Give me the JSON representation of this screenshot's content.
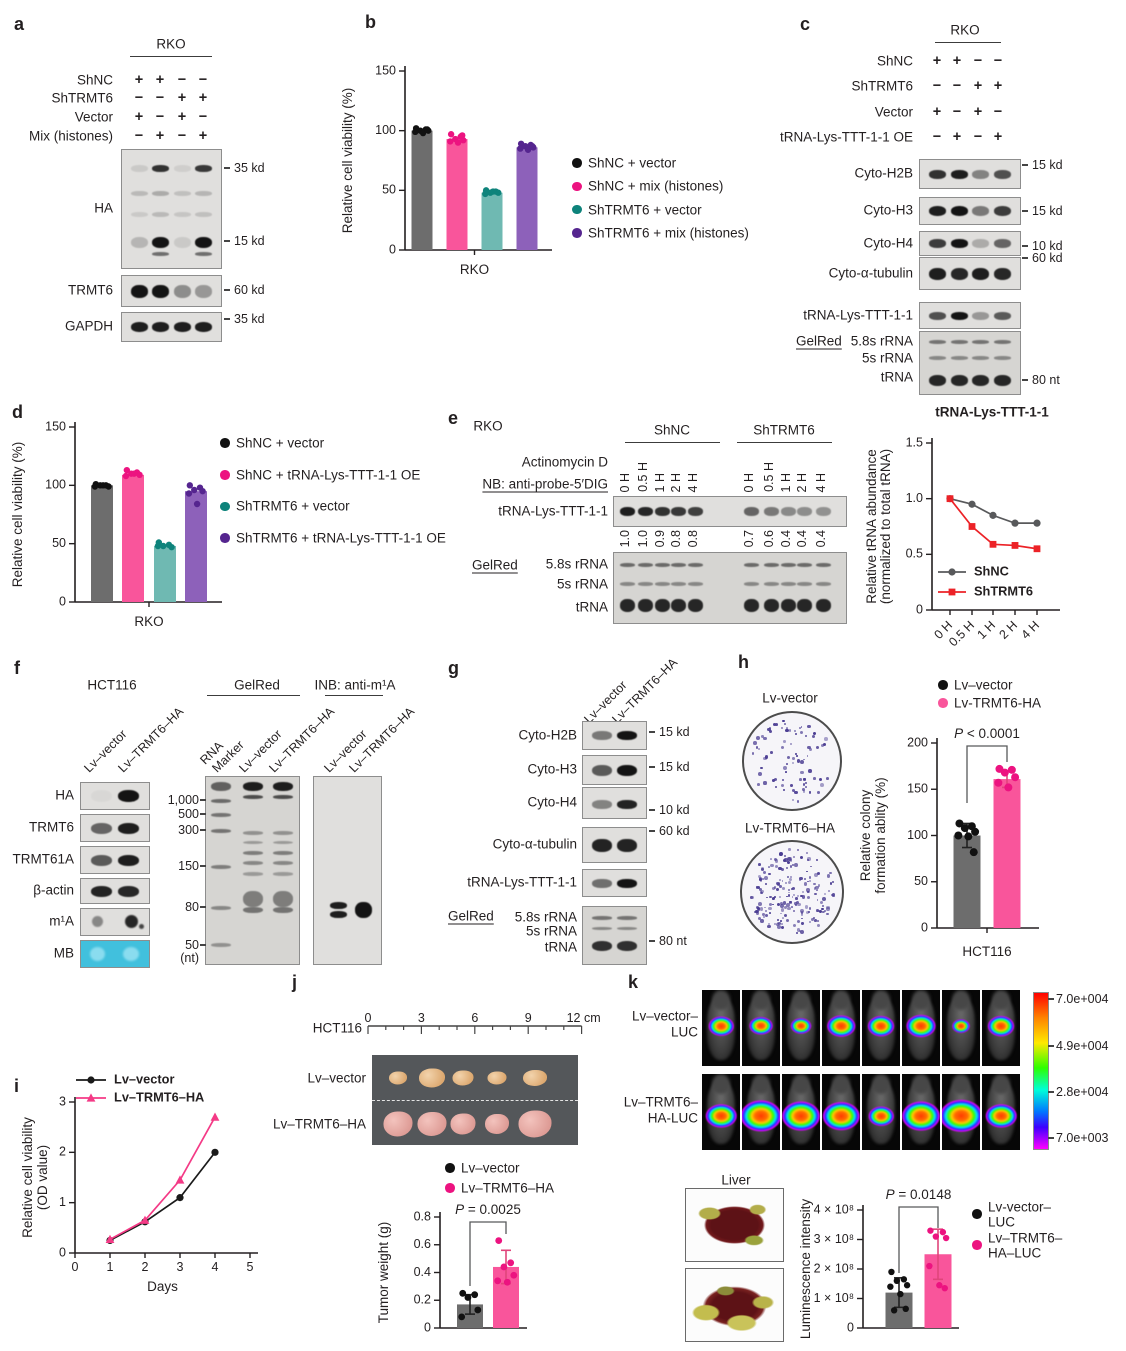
{
  "colors": {
    "bar_gray": "#6d6d6d",
    "bar_pink": "#f9559b",
    "bar_teal": "#6fb9b2",
    "bar_purple": "#8d61ba",
    "dot_black": "#111111",
    "dot_pink": "#ec1380",
    "dot_teal": "#0e837b",
    "dot_purple": "#55258f",
    "line_gray": "#58595b",
    "line_red": "#ec2227",
    "line_black": "#1a1a1a",
    "line_pink": "#f43a86",
    "err_dark": "#222222",
    "err_pink": "#e0457b",
    "mb_cyan": "#41c0dd"
  },
  "panel_a": {
    "label": "a",
    "cell_line": "RKO",
    "conditions": [
      {
        "name": "ShNC",
        "signs": [
          "+",
          "+",
          "−",
          "−"
        ]
      },
      {
        "name": "ShTRMT6",
        "signs": [
          "−",
          "−",
          "+",
          "+"
        ]
      },
      {
        "name": "Vector",
        "signs": [
          "+",
          "−",
          "+",
          "−"
        ]
      },
      {
        "name": "Mix (histones)",
        "signs": [
          "−",
          "+",
          "−",
          "+"
        ]
      }
    ],
    "blots": [
      {
        "label": "HA",
        "markers": [
          {
            "text": "35 kd",
            "f": 0.16
          },
          {
            "text": "15 kd",
            "f": 0.78
          }
        ],
        "bands": [
          {
            "f": 0.16,
            "th": 7,
            "lanes": [
              0.1,
              0.85,
              0.08,
              0.82
            ]
          },
          {
            "f": 0.37,
            "th": 5,
            "lanes": [
              0.18,
              0.25,
              0.15,
              0.2
            ]
          },
          {
            "f": 0.55,
            "th": 5,
            "lanes": [
              0.1,
              0.18,
              0.12,
              0.15
            ]
          },
          {
            "f": 0.78,
            "th": 11,
            "lanes": [
              0.2,
              1.0,
              0.1,
              1.0
            ]
          },
          {
            "f": 0.88,
            "th": 4,
            "lanes": [
              0,
              0.55,
              0,
              0.55
            ]
          }
        ]
      },
      {
        "label": "TRMT6",
        "markers": [
          {
            "text": "60 kd",
            "f": 0.5
          }
        ],
        "bands": [
          {
            "f": 0.5,
            "th": 13,
            "lanes": [
              1.0,
              1.0,
              0.4,
              0.35
            ]
          }
        ]
      },
      {
        "label": "GAPDH",
        "markers": [
          {
            "text": "35 kd",
            "f": 0.25
          }
        ],
        "bands": [
          {
            "f": 0.5,
            "th": 10,
            "lanes": [
              0.95,
              0.95,
              0.95,
              0.95
            ]
          }
        ]
      }
    ]
  },
  "panel_b": {
    "label": "b",
    "chart": {
      "type": "bar",
      "ylabel": "Relative cell viability (%)",
      "xlabel": "RKO",
      "ylim": [
        0,
        150
      ],
      "ytick_labels": [
        "0",
        "50",
        "100",
        "150"
      ],
      "bars": [
        {
          "name": "ShNC + vector",
          "value": 100,
          "points": [
            102,
            101,
            100,
            100,
            99,
            98,
            101
          ]
        },
        {
          "name": "ShNC + mix (histones)",
          "value": 93,
          "points": [
            97,
            95,
            93,
            92,
            91,
            90,
            96
          ]
        },
        {
          "name": "ShTRMT6 + vector",
          "value": 48,
          "points": [
            50,
            49,
            48,
            48,
            47,
            49
          ]
        },
        {
          "name": "ShTRMT6 + mix (histones)",
          "value": 86,
          "points": [
            89,
            88,
            87,
            86,
            85,
            84,
            87
          ]
        }
      ]
    },
    "legend": [
      "ShNC + vector",
      "ShNC + mix (histones)",
      "ShTRMT6 + vector",
      "ShTRMT6 + mix (histones)"
    ]
  },
  "panel_c": {
    "label": "c",
    "cell_line": "RKO",
    "conditions": [
      {
        "name": "ShNC",
        "signs": [
          "+",
          "+",
          "−",
          "−"
        ]
      },
      {
        "name": "ShTRMT6",
        "signs": [
          "−",
          "−",
          "+",
          "+"
        ]
      },
      {
        "name": "Vector",
        "signs": [
          "+",
          "−",
          "+",
          "−"
        ]
      },
      {
        "name": "tRNA-Lys-TTT-1-1 OE",
        "signs": [
          "−",
          "+",
          "−",
          "+"
        ]
      }
    ],
    "blots": [
      {
        "label": "Cyto-H2B",
        "marker": "15 kd",
        "bands": [
          {
            "f": 0.5,
            "th": 9,
            "lanes": [
              0.85,
              0.95,
              0.45,
              0.7
            ]
          }
        ]
      },
      {
        "label": "Cyto-H3",
        "marker": "15 kd",
        "bands": [
          {
            "f": 0.5,
            "th": 10,
            "lanes": [
              0.95,
              1.0,
              0.5,
              0.8
            ]
          }
        ]
      },
      {
        "label": "Cyto-H4",
        "marker": "10 kd",
        "bands": [
          {
            "f": 0.5,
            "th": 9,
            "lanes": [
              0.8,
              1.0,
              0.25,
              0.6
            ]
          }
        ]
      },
      {
        "label": "Cyto-α-tubulin",
        "marker": "60 kd",
        "bands": [
          {
            "f": 0.5,
            "th": 12,
            "lanes": [
              0.95,
              0.9,
              0.95,
              0.9
            ]
          }
        ]
      },
      {
        "label": "tRNA-Lys-TTT-1-1",
        "marker": "",
        "bands": [
          {
            "f": 0.5,
            "th": 8,
            "lanes": [
              0.7,
              1.0,
              0.35,
              0.65
            ]
          }
        ]
      }
    ],
    "gel_label": "GelRed",
    "gel_rows": [
      "5.8s rRNA",
      "5s rRNA",
      "tRNA"
    ],
    "gel_marker": "80 nt"
  },
  "panel_d": {
    "label": "d",
    "chart": {
      "type": "bar",
      "ylabel": "Relative cell viability (%)",
      "xlabel": "RKO",
      "ylim": [
        0,
        150
      ],
      "ytick_labels": [
        "0",
        "50",
        "100",
        "150"
      ],
      "bars": [
        {
          "name": "ShNC + vector",
          "value": 100,
          "points": [
            101,
            100,
            100,
            99,
            99,
            100
          ]
        },
        {
          "name": "ShNC + tRNA-Lys-TTT-1-1 OE",
          "value": 109,
          "points": [
            113,
            111,
            110,
            109,
            108,
            110
          ]
        },
        {
          "name": "ShTRMT6 + vector",
          "value": 48,
          "points": [
            51,
            49,
            48,
            47,
            48
          ]
        },
        {
          "name": "ShTRMT6 + tRNA-Lys-TTT-1-1 OE",
          "value": 95,
          "points": [
            100,
            98,
            96,
            95,
            93,
            84
          ]
        }
      ]
    },
    "legend": [
      "ShNC + vector",
      "ShNC + tRNA-Lys-TTT-1-1 OE",
      "ShTRMT6 + vector",
      "ShTRMT6 + tRNA-Lys-TTT-1-1 OE"
    ]
  },
  "panel_e": {
    "label": "e",
    "cell_line": "RKO",
    "groups": [
      "ShNC",
      "ShTRMT6"
    ],
    "treatment": "Actinomycin D",
    "nb": "NB: anti-probe-5′DIG",
    "times": [
      "0 H",
      "0.5 H",
      "1 H",
      "2 H",
      "4 H"
    ],
    "blot": "tRNA-Lys-TTT-1-1",
    "quant": [
      [
        "1.0",
        "1.0",
        "0.9",
        "0.8",
        "0.8"
      ],
      [
        "0.7",
        "0.6",
        "0.4",
        "0.4",
        "0.4"
      ]
    ],
    "band_int": [
      [
        0.95,
        0.9,
        0.85,
        0.82,
        0.78
      ],
      [
        0.6,
        0.5,
        0.42,
        0.4,
        0.38
      ]
    ],
    "gel_label": "GelRed",
    "gel_rows": [
      "5.8s rRNA",
      "5s rRNA",
      "tRNA"
    ],
    "chart": {
      "type": "line",
      "title": "tRNA-Lys-TTT-1-1",
      "ylabel": [
        "Relative tRNA abundance",
        "(normalized to total tRNA)"
      ],
      "ylim": [
        0,
        1.5
      ],
      "ytick_labels": [
        "0",
        "0.5",
        "1.0",
        "1.5"
      ],
      "xticks": [
        "0 H",
        "0.5 H",
        "1 H",
        "2 H",
        "4 H"
      ],
      "series": [
        {
          "name": "ShNC",
          "marker": "circle",
          "color": "#58595b",
          "values": [
            1.0,
            0.95,
            0.85,
            0.78,
            0.78
          ]
        },
        {
          "name": "ShTRMT6",
          "marker": "square",
          "color": "#ec2227",
          "values": [
            1.0,
            0.75,
            0.59,
            0.58,
            0.55
          ]
        }
      ]
    }
  },
  "panel_f": {
    "label": "f",
    "cell_line": "HCT116",
    "lanes": [
      "Lv–vector",
      "Lv–TRMT6–HA"
    ],
    "blots": [
      {
        "label": "HA"
      },
      {
        "label": "TRMT6"
      },
      {
        "label": "TRMT61A"
      },
      {
        "label": "β-actin"
      },
      {
        "label": "m¹A"
      },
      {
        "label": "MB"
      }
    ],
    "gel_header": "GelRed",
    "gel_marker_lane": [
      "RNA",
      "Marker"
    ],
    "gel_sizes": [
      "1,000",
      "500",
      "300",
      "150",
      "80",
      "50"
    ],
    "gel_nt": "(nt)",
    "inb_header": "INB: anti-m¹A"
  },
  "panel_g": {
    "label": "g",
    "lanes": [
      "Lv–vector",
      "Lv–TRMT6–HA"
    ],
    "blots": [
      {
        "label": "Cyto-H2B",
        "marker": "15 kd",
        "bands": [
          {
            "f": 0.5,
            "th": 9,
            "lanes": [
              0.5,
              1.0
            ]
          }
        ]
      },
      {
        "label": "Cyto-H3",
        "marker": "15 kd",
        "bands": [
          {
            "f": 0.5,
            "th": 11,
            "lanes": [
              0.65,
              1.0
            ]
          }
        ]
      },
      {
        "label": "Cyto-H4",
        "marker": "10 kd",
        "bands": [
          {
            "f": 0.55,
            "th": 9,
            "lanes": [
              0.45,
              0.92
            ]
          }
        ]
      },
      {
        "label": "Cyto-α-tubulin",
        "marker": "60 kd",
        "bands": [
          {
            "f": 0.5,
            "th": 13,
            "lanes": [
              0.92,
              0.92
            ]
          }
        ]
      },
      {
        "label": "tRNA-Lys-TTT-1-1",
        "marker": "",
        "bands": [
          {
            "f": 0.5,
            "th": 9,
            "lanes": [
              0.55,
              1.0
            ]
          }
        ]
      }
    ],
    "gel_label": "GelRed",
    "gel_rows": [
      "5.8s rRNA",
      "5s rRNA",
      "tRNA"
    ],
    "gel_marker": "80 nt"
  },
  "panel_h": {
    "label": "h",
    "dish_labels": [
      "Lv-vector",
      "Lv-TRMT6–HA"
    ],
    "legend": [
      "Lv–vector",
      "Lv-TRMT6-HA"
    ],
    "p": "P < 0.0001",
    "chart": {
      "type": "bar",
      "ylabel": [
        "Relative colony",
        "formation ablity (%)"
      ],
      "ylim": [
        0,
        200
      ],
      "ytick_labels": [
        "0",
        "50",
        "100",
        "150",
        "200"
      ],
      "xlabel": "HCT116",
      "bars": [
        {
          "name": "Lv–vector",
          "value": 100,
          "err": 13,
          "points": [
            113,
            110,
            108,
            104,
            100,
            99,
            82
          ]
        },
        {
          "name": "Lv-TRMT6-HA",
          "value": 161,
          "err": 9,
          "points": [
            172,
            171,
            168,
            163,
            157,
            152
          ]
        }
      ]
    }
  },
  "panel_i": {
    "label": "i",
    "chart": {
      "type": "line",
      "ylabel": [
        "Relative cell viability",
        "(OD value)"
      ],
      "xlabel": "Days",
      "ylim": [
        0,
        3
      ],
      "ytick_labels": [
        "0",
        "1",
        "2",
        "3"
      ],
      "xlim": [
        0,
        5
      ],
      "xtick_labels": [
        "0",
        "1",
        "2",
        "3",
        "4",
        "5"
      ],
      "series": [
        {
          "name": "Lv–vector",
          "marker": "circle",
          "color": "#1a1a1a",
          "x": [
            1,
            2,
            3,
            4
          ],
          "values": [
            0.25,
            0.62,
            1.1,
            2.0
          ]
        },
        {
          "name": "Lv–TRMT6–HA",
          "marker": "triangle",
          "color": "#f43a86",
          "x": [
            1,
            2,
            3,
            4
          ],
          "values": [
            0.27,
            0.65,
            1.45,
            2.7
          ]
        }
      ]
    }
  },
  "panel_j": {
    "label": "j",
    "cell_line": "HCT116",
    "ruler_ticks": [
      "0",
      "3",
      "6",
      "9"
    ],
    "ruler_end": "12 cm",
    "rows": [
      "Lv–vector",
      "Lv–TRMT6–HA"
    ],
    "legend": [
      "Lv–vector",
      "Lv–TRMT6–HA"
    ],
    "p": "P = 0.0025",
    "chart": {
      "type": "bar",
      "ylabel": "Tumor weight (g)",
      "ylim": [
        0,
        0.8
      ],
      "ytick_labels": [
        "0",
        "0.2",
        "0.4",
        "0.6",
        "0.8"
      ],
      "bars": [
        {
          "name": "Lv–vector",
          "value": 0.17,
          "err": 0.07,
          "points": [
            0.25,
            0.24,
            0.22,
            0.13,
            0.08
          ]
        },
        {
          "name": "Lv–TRMT6–HA",
          "value": 0.44,
          "err": 0.12,
          "points": [
            0.63,
            0.47,
            0.44,
            0.38,
            0.34,
            0.33
          ]
        }
      ]
    }
  },
  "panel_k": {
    "label": "k",
    "rows": [
      {
        "lines": [
          "Lv–vector–",
          "LUC"
        ],
        "blob_scales": [
          0.85,
          0.8,
          0.7,
          0.95,
          0.9,
          1.0,
          0.6,
          0.9
        ]
      },
      {
        "lines": [
          "Lv–TRMT6–",
          "HA-LUC"
        ],
        "blob_scales": [
          1.05,
          1.4,
          1.3,
          1.25,
          0.85,
          1.3,
          1.45,
          1.05
        ]
      }
    ],
    "scale_labels": [
      "7.0e+004",
      "4.9e+004",
      "2.8e+004",
      "7.0e+003"
    ],
    "liver": "Liver",
    "p": "P = 0.0148",
    "chart": {
      "type": "bar",
      "ylabel": "Luminescence intensity",
      "ylim": [
        0,
        4
      ],
      "ytick_labels": [
        "0",
        "1 × 10⁸",
        "2 × 10⁸",
        "3 × 10⁸",
        "4 × 10⁸"
      ],
      "bars": [
        {
          "name": "Lv-vector-LUC",
          "value": 1.2,
          "err": 0.5,
          "points": [
            1.9,
            1.65,
            1.6,
            1.45,
            1.4,
            1.15,
            0.65,
            0.6
          ]
        },
        {
          "name": "Lv-TRMT6-HA-LUC",
          "value": 2.5,
          "err": 0.85,
          "points": [
            3.3,
            3.25,
            3.1,
            3.05,
            2.1,
            1.45,
            1.35
          ]
        }
      ]
    },
    "legend": [
      {
        "lines": [
          "Lv-vector–",
          "LUC"
        ]
      },
      {
        "lines": [
          "Lv–TRMT6–",
          "HA–LUC"
        ]
      }
    ]
  }
}
